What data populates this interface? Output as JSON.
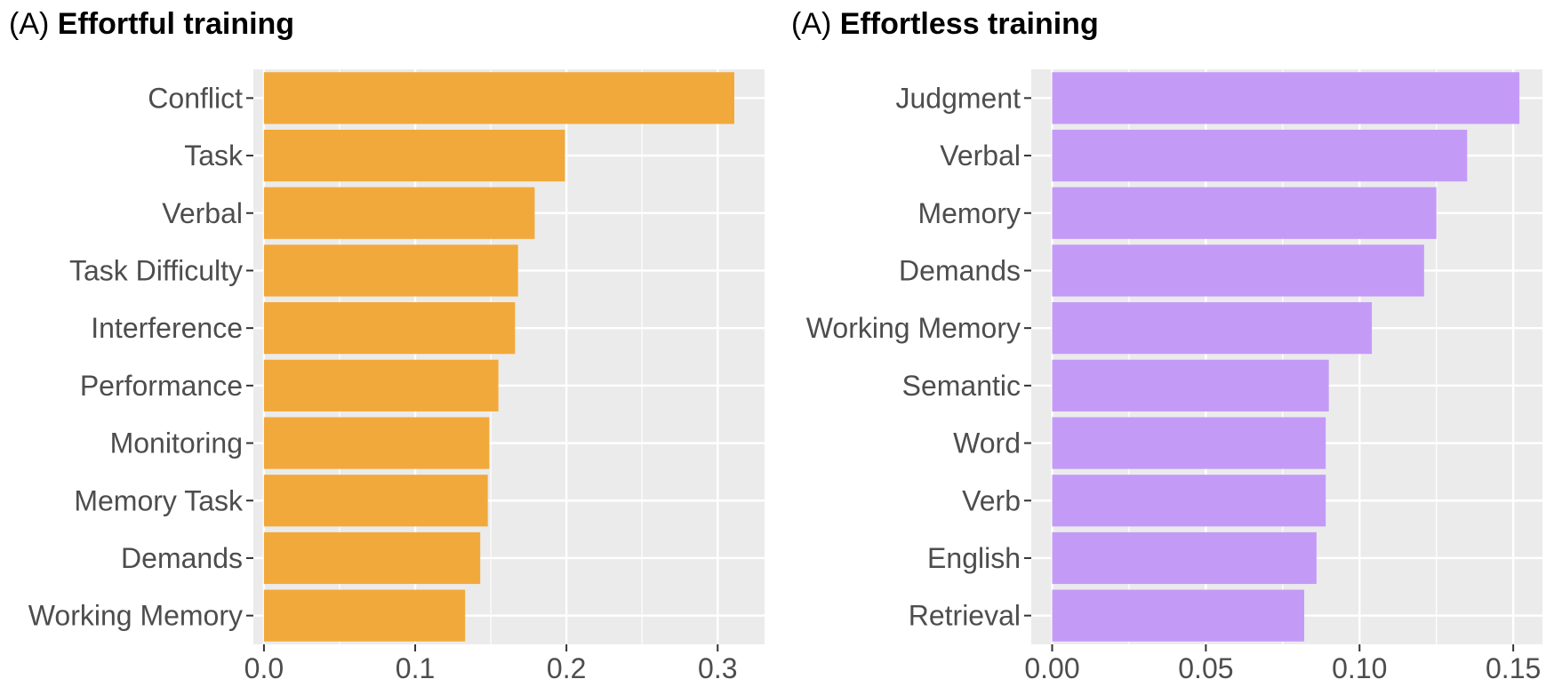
{
  "chart_data": [
    {
      "type": "bar",
      "orientation": "horizontal",
      "title_prefix": "(A)",
      "title": "Effortful training",
      "xlabel": "",
      "ylabel": "",
      "color": "#F2A93B",
      "background": "#EBEBEB",
      "grid": true,
      "categories": [
        "Conflict",
        "Task",
        "Verbal",
        "Task Difficulty",
        "Interference",
        "Performance",
        "Monitoring",
        "Memory Task",
        "Demands",
        "Working Memory"
      ],
      "values": [
        0.311,
        0.199,
        0.179,
        0.168,
        0.166,
        0.155,
        0.149,
        0.148,
        0.143,
        0.133
      ],
      "xlim": [
        -0.007,
        0.331
      ],
      "xticks": [
        0.0,
        0.1,
        0.2,
        0.3
      ],
      "xtick_labels": [
        "0.0",
        "0.1",
        "0.2",
        "0.3"
      ]
    },
    {
      "type": "bar",
      "orientation": "horizontal",
      "title_prefix": "(A)",
      "title": "Effortless training",
      "xlabel": "",
      "ylabel": "",
      "color": "#C39BF7",
      "background": "#EBEBEB",
      "grid": true,
      "categories": [
        "Judgment",
        "Verbal",
        "Memory",
        "Demands",
        "Working Memory",
        "Semantic",
        "Word",
        "Verb",
        "English",
        "Retrieval"
      ],
      "values": [
        0.152,
        0.135,
        0.125,
        0.121,
        0.104,
        0.09,
        0.089,
        0.089,
        0.086,
        0.082
      ],
      "xlim": [
        -0.0068,
        0.1595
      ],
      "xticks": [
        0.0,
        0.05,
        0.1,
        0.15
      ],
      "xtick_labels": [
        "0.00",
        "0.05",
        "0.10",
        "0.15"
      ]
    }
  ]
}
